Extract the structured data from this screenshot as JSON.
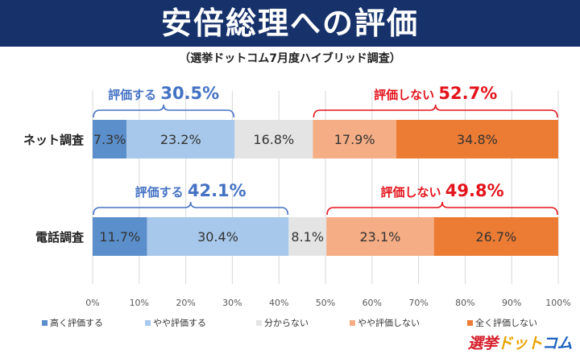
{
  "header": {
    "title": "安倍総理への評価",
    "subtitle": "（選挙ドットコム7月度ハイブリッド調査）"
  },
  "logo": {
    "part1": "選挙",
    "part2": "ドット",
    "part3": "コム"
  },
  "colors": {
    "dark_blue": "#5b8fcb",
    "light_blue": "#a7c8ea",
    "gray": "#e4e4e4",
    "light_orange": "#f4ad84",
    "orange": "#ec7c34",
    "support_text": "#4472c4",
    "oppose_text": "#e3141c",
    "banner": "#17326b"
  },
  "chart_data": {
    "type": "bar",
    "orientation": "horizontal",
    "stacked": true,
    "categories": [
      "ネット調査",
      "電話調査"
    ],
    "series": [
      {
        "name": "高く評価する",
        "values": [
          7.3,
          11.7
        ]
      },
      {
        "name": "やや評価する",
        "values": [
          23.2,
          30.4
        ]
      },
      {
        "name": "分からない",
        "values": [
          16.8,
          8.1
        ]
      },
      {
        "name": "やや評価しない",
        "values": [
          17.9,
          23.1
        ]
      },
      {
        "name": "全く評価しない",
        "values": [
          34.8,
          26.7
        ]
      }
    ],
    "data_labels": [
      [
        "7.3%",
        "23.2%",
        "16.8%",
        "17.9%",
        "34.8%"
      ],
      [
        "11.7%",
        "30.4%",
        "8.1%",
        "23.1%",
        "26.7%"
      ]
    ],
    "xlim": [
      0,
      100
    ],
    "xticks": [
      "0%",
      "10%",
      "20%",
      "30%",
      "40%",
      "50%",
      "60%",
      "70%",
      "80%",
      "90%",
      "100%"
    ],
    "grid": true,
    "legend_position": "bottom",
    "annotations": [
      {
        "row": 0,
        "label": "評価する",
        "value": "30.5%",
        "from": 0,
        "to": 30.5,
        "side": "support"
      },
      {
        "row": 0,
        "label": "評価しない",
        "value": "52.7%",
        "from": 47.3,
        "to": 100,
        "side": "oppose"
      },
      {
        "row": 1,
        "label": "評価する",
        "value": "42.1%",
        "from": 0,
        "to": 42.1,
        "side": "support"
      },
      {
        "row": 1,
        "label": "評価しない",
        "value": "49.8%",
        "from": 50.2,
        "to": 100,
        "side": "oppose"
      }
    ]
  }
}
